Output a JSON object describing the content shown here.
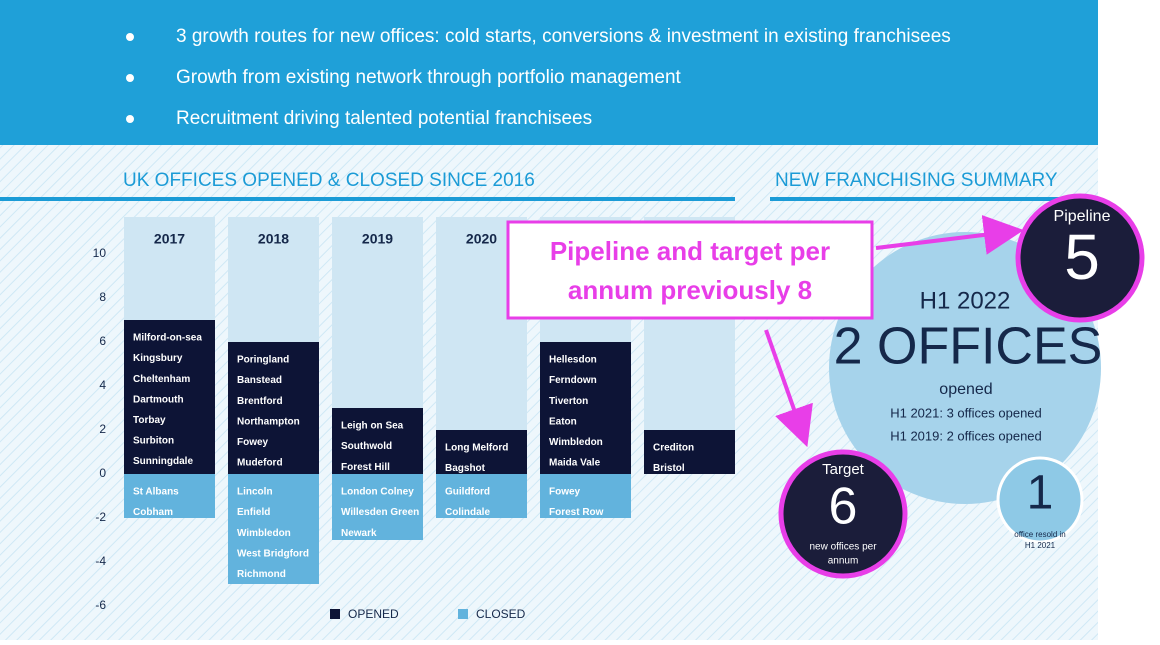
{
  "bullets": [
    "3 growth routes for new offices: cold starts, conversions & investment in existing franchisees",
    "Growth from existing network through portfolio management",
    "Recruitment driving talented potential franchisees"
  ],
  "chart_data": {
    "type": "bar",
    "title": "UK OFFICES OPENED & CLOSED SINCE 2016",
    "categories": [
      "2017",
      "2018",
      "2019",
      "2020",
      null,
      null
    ],
    "series": [
      {
        "name": "OPENED",
        "color": "#0d1436",
        "values": [
          7,
          6,
          3,
          2,
          6,
          2
        ],
        "labels": [
          [
            "Milford-on-sea",
            "Kingsbury",
            "Cheltenham",
            "Dartmouth",
            "Torbay",
            "Surbiton",
            "Sunningdale"
          ],
          [
            "Poringland",
            "Banstead",
            "Brentford",
            "Northampton",
            "Fowey",
            "Mudeford"
          ],
          [
            "Leigh on Sea",
            "Southwold",
            "Forest Hill"
          ],
          [
            "Long Melford",
            "Bagshot"
          ],
          [
            "Hellesdon",
            "Ferndown",
            "Tiverton",
            "Eaton",
            "Wimbledon",
            "Maida Vale"
          ],
          [
            "Crediton",
            "Bristol"
          ]
        ]
      },
      {
        "name": "CLOSED",
        "color": "#62b3dd",
        "values": [
          -2,
          -5,
          -3,
          -2,
          -2,
          0
        ],
        "labels": [
          [
            "St Albans",
            "Cobham"
          ],
          [
            "Lincoln",
            "Enfield",
            "Wimbledon",
            "West Bridgford",
            "Richmond"
          ],
          [
            "London Colney",
            "Willesden Green",
            "Newark"
          ],
          [
            "Guildford",
            "Colindale"
          ],
          [
            "Fowey",
            "Forest Row"
          ],
          []
        ]
      }
    ],
    "ylim": [
      -6,
      10
    ],
    "yticks": [
      -6,
      -4,
      -2,
      0,
      2,
      4,
      6,
      8,
      10
    ],
    "grid": false
  },
  "summary": {
    "title": "NEW FRANCHISING SUMMARY",
    "period": "H1 2022",
    "headline": "2 OFFICES",
    "sub": "opened",
    "notes": [
      "H1 2021: 3 offices opened",
      "H1 2019: 2 offices opened"
    ],
    "pipeline": {
      "label": "Pipeline",
      "value": 5
    },
    "target": {
      "label": "Target",
      "value": 6,
      "caption": [
        "new offices per",
        "annum"
      ]
    },
    "resold": {
      "value": 1,
      "caption": [
        "office resold in",
        "H1 2021"
      ]
    }
  },
  "annotation": [
    "Pipeline and target per",
    "annum previously 8"
  ]
}
